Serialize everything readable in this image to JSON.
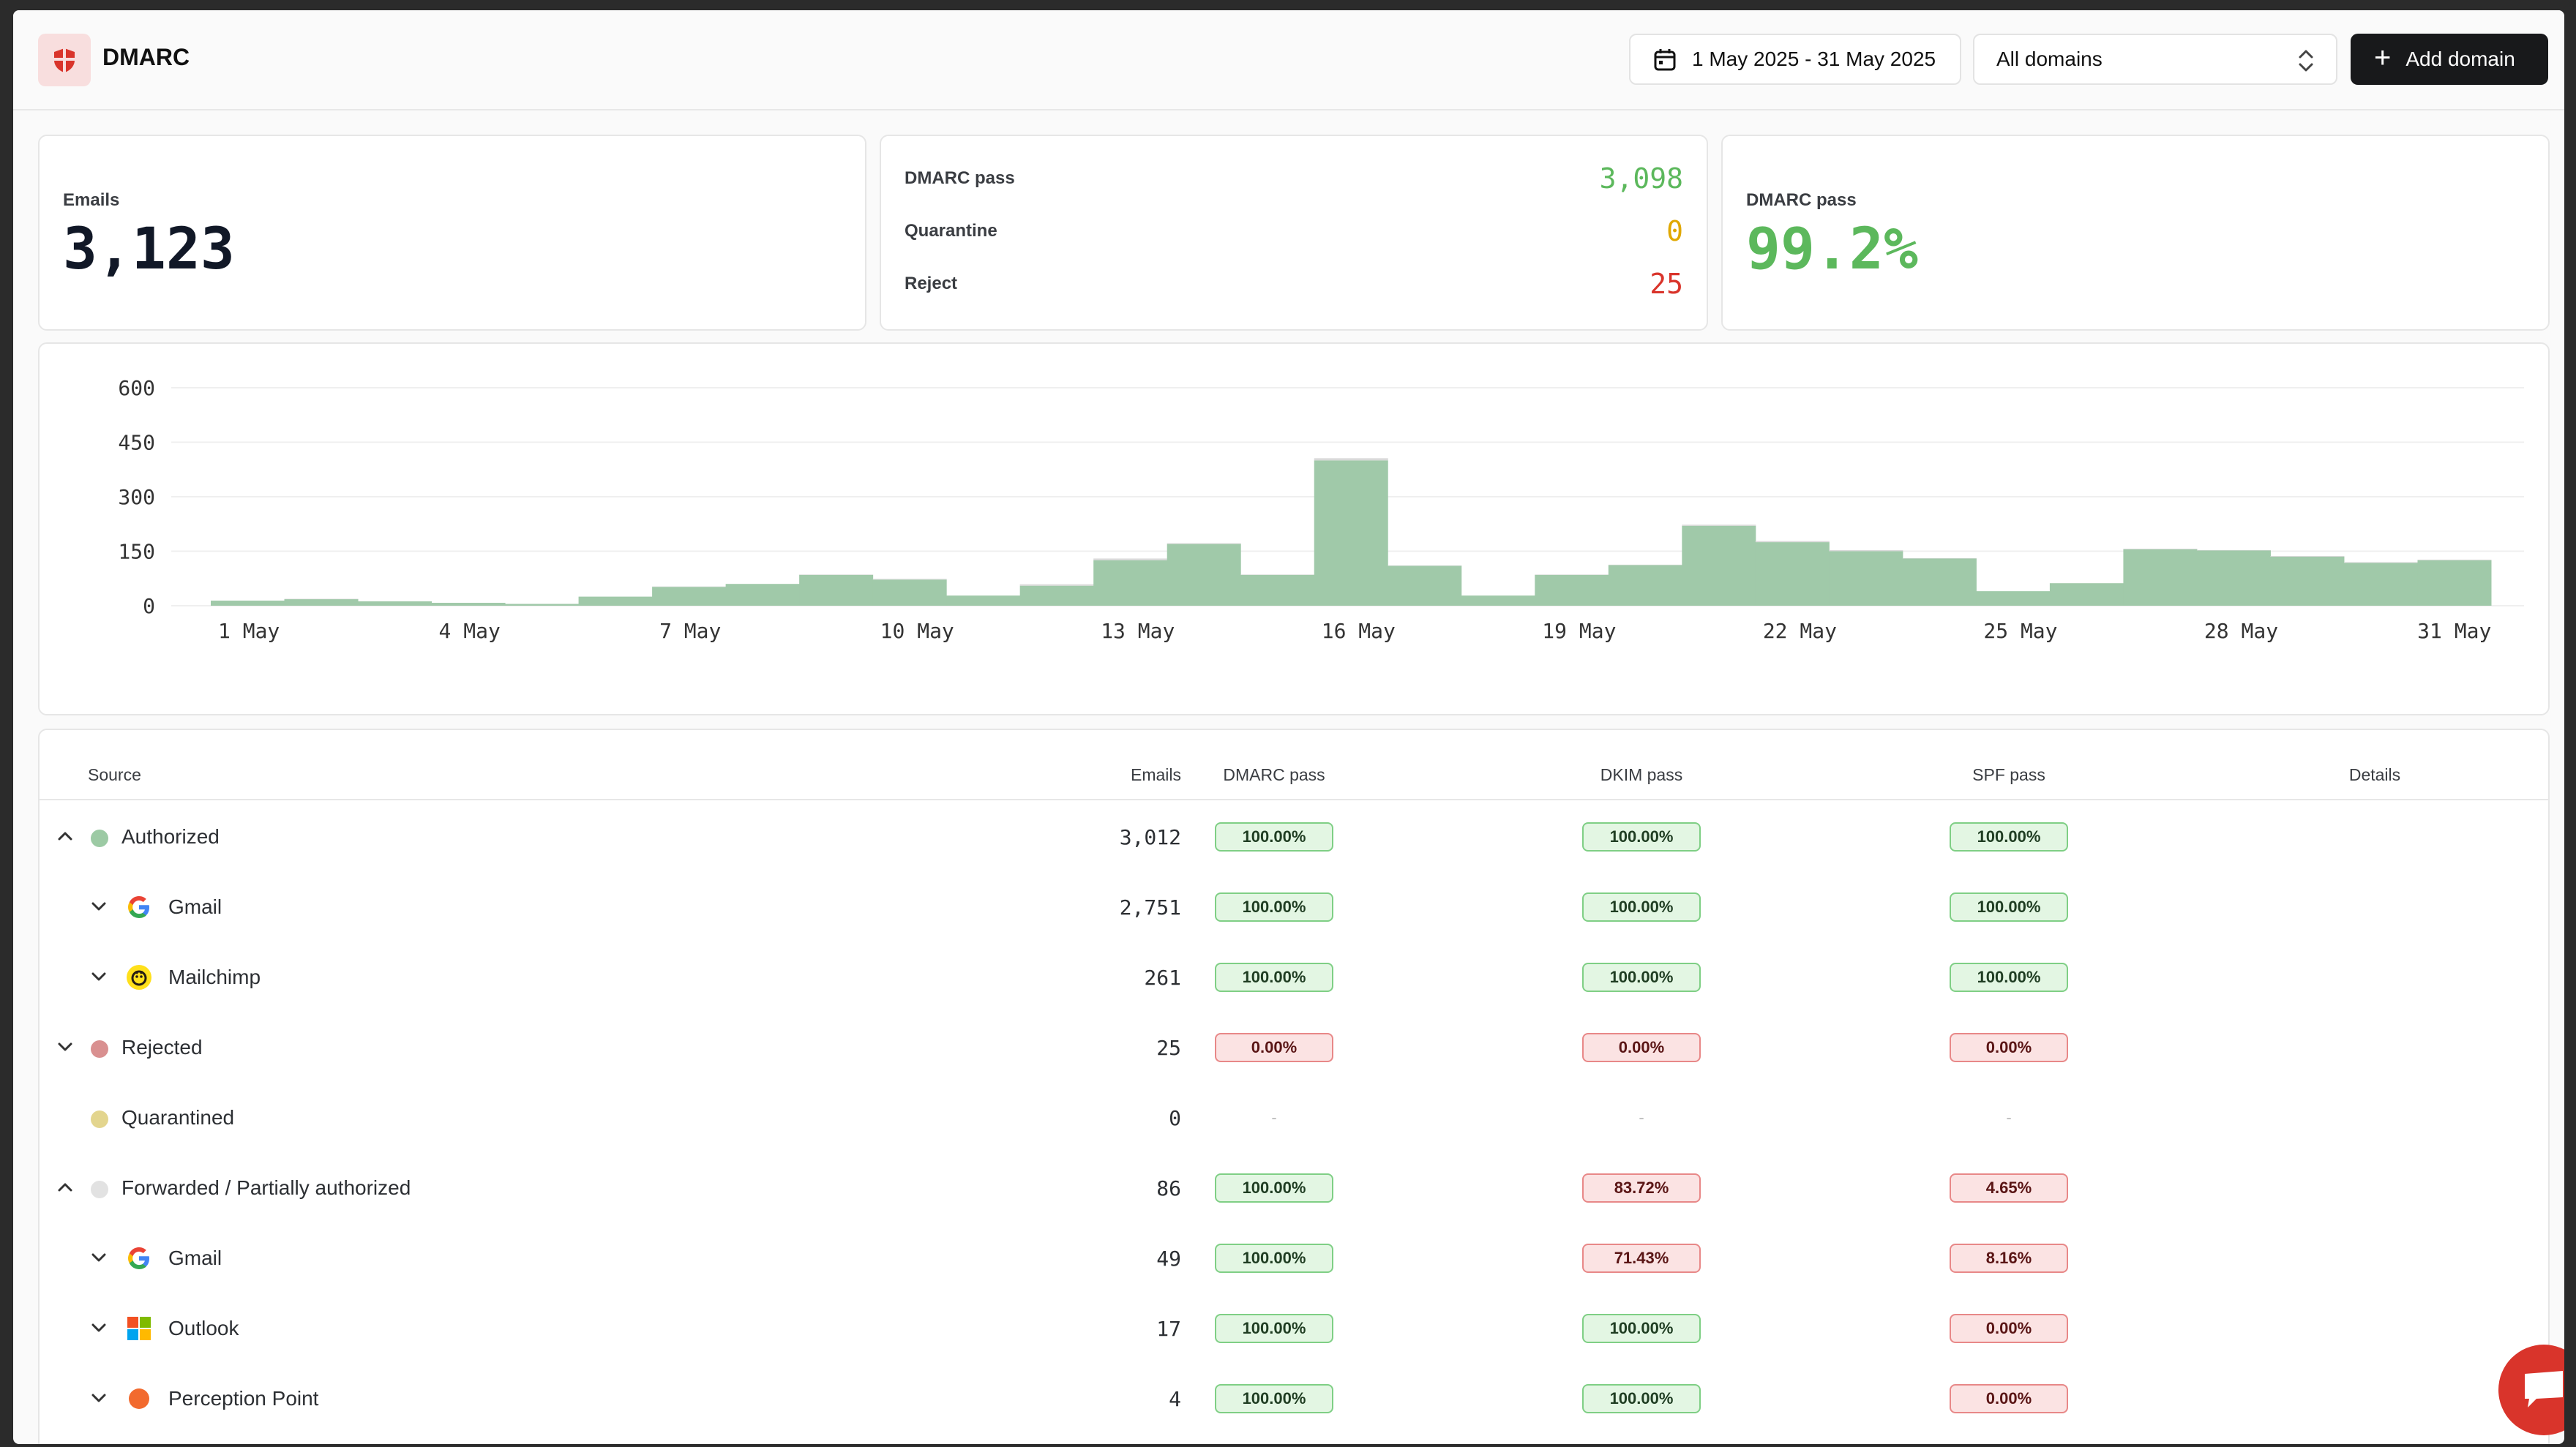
{
  "header": {
    "title": "DMARC",
    "date_range": "1 May 2025 - 31 May 2025",
    "domain_select": "All domains",
    "add_button": "Add domain"
  },
  "stats": {
    "emails": {
      "label": "Emails",
      "value": "3,123"
    },
    "breakdown": [
      {
        "label": "DMARC pass",
        "value": "3,098",
        "color": "#5cb85c"
      },
      {
        "label": "Quarantine",
        "value": "0",
        "color": "#e0a800"
      },
      {
        "label": "Reject",
        "value": "25",
        "color": "#d9342b"
      }
    ],
    "pass_rate": {
      "label": "DMARC pass",
      "value": "99.2%"
    }
  },
  "chart_data": {
    "type": "bar",
    "x_tick_labels": [
      "1 May",
      "4 May",
      "7 May",
      "10 May",
      "13 May",
      "16 May",
      "19 May",
      "22 May",
      "25 May",
      "28 May",
      "31 May"
    ],
    "categories": [
      "1 May",
      "2 May",
      "3 May",
      "4 May",
      "5 May",
      "6 May",
      "7 May",
      "8 May",
      "9 May",
      "10 May",
      "11 May",
      "12 May",
      "13 May",
      "14 May",
      "15 May",
      "16 May",
      "17 May",
      "18 May",
      "19 May",
      "20 May",
      "21 May",
      "22 May",
      "23 May",
      "24 May",
      "25 May",
      "26 May",
      "27 May",
      "28 May",
      "29 May",
      "30 May",
      "31 May"
    ],
    "series": [
      {
        "values": [
          14,
          18,
          12,
          8,
          5,
          25,
          52,
          60,
          85,
          72,
          28,
          55,
          125,
          170,
          85,
          400,
          110,
          28,
          85,
          112,
          220,
          175,
          150,
          130,
          40,
          62,
          155,
          152,
          135,
          118,
          125
        ],
        "color": "#a0c9a9"
      },
      {
        "values": [
          0,
          1,
          0,
          0,
          0,
          0,
          1,
          0,
          1,
          2,
          0,
          4,
          5,
          2,
          1,
          6,
          1,
          0,
          1,
          1,
          3,
          3,
          3,
          1,
          0,
          0,
          2,
          1,
          2,
          2,
          2
        ],
        "color": "#d9d9d9"
      }
    ],
    "yticks": [
      0,
      150,
      300,
      450,
      600
    ],
    "ylim": [
      0,
      600
    ]
  },
  "table": {
    "columns": [
      "Source",
      "Emails",
      "DMARC pass",
      "DKIM pass",
      "SPF pass",
      "Details"
    ],
    "rows": [
      {
        "level": 0,
        "toggle": "up",
        "dot": "#9ccaa4",
        "name": "Authorized",
        "emails": "3,012",
        "dmarc": "100.00%",
        "dkim": "100.00%",
        "spf": "100.00%",
        "status": [
          "g",
          "g",
          "g"
        ]
      },
      {
        "level": 1,
        "toggle": "down",
        "icon": "google-icon",
        "name": "Gmail",
        "emails": "2,751",
        "dmarc": "100.00%",
        "dkim": "100.00%",
        "spf": "100.00%",
        "status": [
          "g",
          "g",
          "g"
        ]
      },
      {
        "level": 1,
        "toggle": "down",
        "icon": "mailchimp-icon",
        "name": "Mailchimp",
        "emails": "261",
        "dmarc": "100.00%",
        "dkim": "100.00%",
        "spf": "100.00%",
        "status": [
          "g",
          "g",
          "g"
        ]
      },
      {
        "level": 0,
        "toggle": "down",
        "dot": "#d99090",
        "name": "Rejected",
        "emails": "25",
        "dmarc": "0.00%",
        "dkim": "0.00%",
        "spf": "0.00%",
        "status": [
          "r",
          "r",
          "r"
        ]
      },
      {
        "level": 0,
        "toggle": "none",
        "dot": "#e3d58e",
        "name": "Quarantined",
        "emails": "0",
        "dmarc": "-",
        "dkim": "-",
        "spf": "-",
        "status": [
          "n",
          "n",
          "n"
        ]
      },
      {
        "level": 0,
        "toggle": "up",
        "dot": "#e2e2e2",
        "name": "Forwarded / Partially authorized",
        "emails": "86",
        "dmarc": "100.00%",
        "dkim": "83.72%",
        "spf": "4.65%",
        "status": [
          "g",
          "r",
          "r"
        ]
      },
      {
        "level": 1,
        "toggle": "down",
        "icon": "google-icon",
        "name": "Gmail",
        "emails": "49",
        "dmarc": "100.00%",
        "dkim": "71.43%",
        "spf": "8.16%",
        "status": [
          "g",
          "r",
          "r"
        ]
      },
      {
        "level": 1,
        "toggle": "down",
        "icon": "outlook-icon",
        "name": "Outlook",
        "emails": "17",
        "dmarc": "100.00%",
        "dkim": "100.00%",
        "spf": "0.00%",
        "status": [
          "g",
          "g",
          "r"
        ]
      },
      {
        "level": 1,
        "toggle": "down",
        "icon": "perception-point-icon",
        "name": "Perception Point",
        "emails": "4",
        "dmarc": "100.00%",
        "dkim": "100.00%",
        "spf": "0.00%",
        "status": [
          "g",
          "g",
          "r"
        ]
      }
    ]
  }
}
